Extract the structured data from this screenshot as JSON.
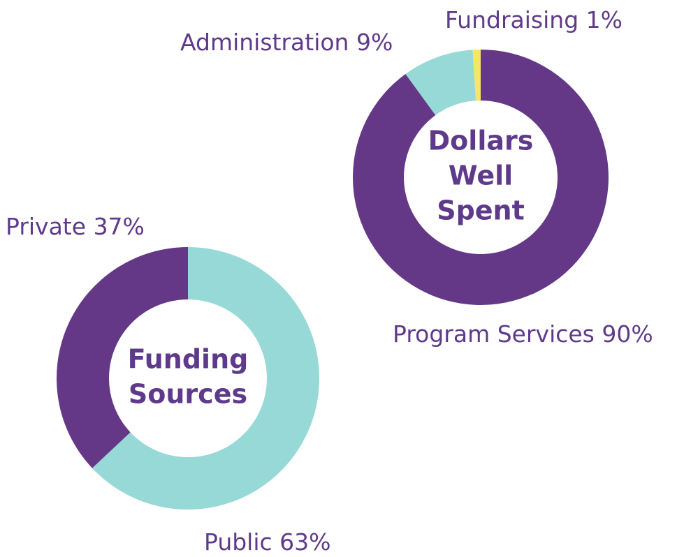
{
  "chart_data": [
    {
      "type": "donut",
      "title": [
        "Dollars",
        "Well",
        "Spent"
      ],
      "categories": [
        "Program Services",
        "Administration",
        "Fundraising"
      ],
      "values": [
        90,
        9,
        1
      ],
      "value_labels": [
        "90%",
        "9%",
        "1%"
      ],
      "colors": [
        "#643887",
        "#97d9d6",
        "#f5e663"
      ]
    },
    {
      "type": "donut",
      "title": [
        "Funding",
        "Sources"
      ],
      "categories": [
        "Public",
        "Private"
      ],
      "values": [
        63,
        37
      ],
      "value_labels": [
        "63%",
        "37%"
      ],
      "colors": [
        "#97d9d6",
        "#643887"
      ]
    }
  ]
}
